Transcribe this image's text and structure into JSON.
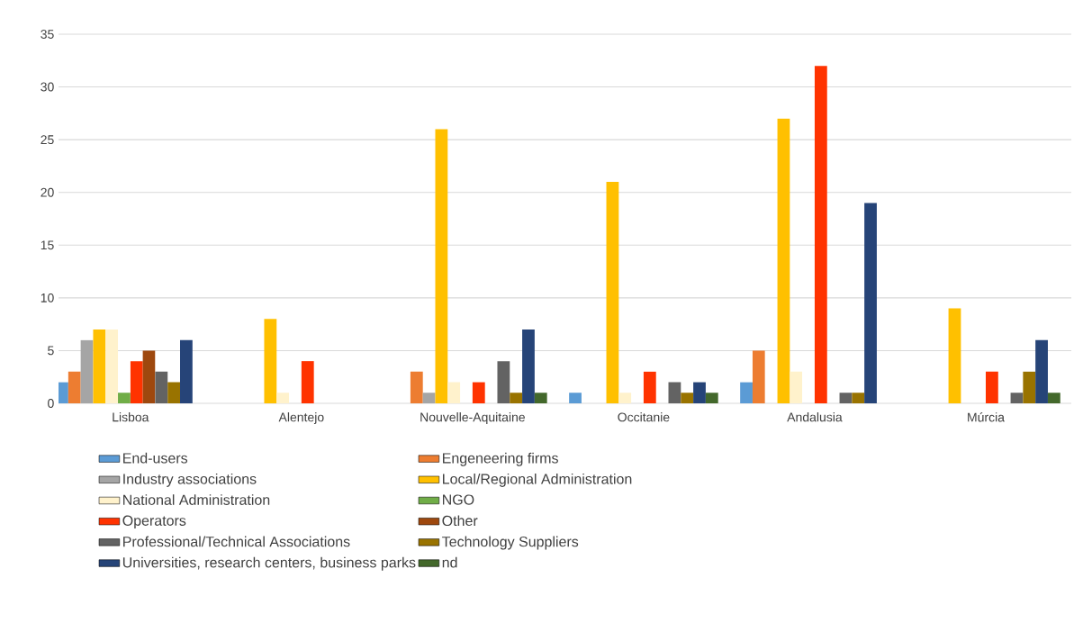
{
  "chart_data": {
    "type": "bar",
    "categories": [
      "Lisboa",
      "Alentejo",
      "Nouvelle-Aquitaine",
      "Occitanie",
      "Andalusia",
      "Múrcia"
    ],
    "series": [
      {
        "name": "End-users",
        "color": "#5b9bd5",
        "values": [
          2,
          null,
          null,
          1,
          2,
          null
        ]
      },
      {
        "name": "Engeneering firms",
        "color": "#ed7d31",
        "values": [
          3,
          null,
          3,
          null,
          5,
          null
        ]
      },
      {
        "name": "Industry associations",
        "color": "#a5a5a5",
        "values": [
          6,
          null,
          1,
          null,
          null,
          null
        ]
      },
      {
        "name": "Local/Regional Administration",
        "color": "#ffc000",
        "values": [
          7,
          8,
          26,
          21,
          27,
          9
        ]
      },
      {
        "name": "National Administration",
        "color": "#fff2cc",
        "values": [
          7,
          1,
          2,
          1,
          3,
          null
        ]
      },
      {
        "name": "NGO",
        "color": "#70ad47",
        "values": [
          1,
          null,
          null,
          null,
          null,
          null
        ]
      },
      {
        "name": "Operators",
        "color": "#ff3300",
        "values": [
          4,
          4,
          2,
          3,
          32,
          3
        ]
      },
      {
        "name": "Other",
        "color": "#9e480e",
        "values": [
          5,
          null,
          null,
          null,
          null,
          null
        ]
      },
      {
        "name": "Professional/Technical Associations",
        "color": "#636363",
        "values": [
          3,
          null,
          4,
          2,
          1,
          1
        ]
      },
      {
        "name": "Technology Suppliers",
        "color": "#997300",
        "values": [
          2,
          null,
          1,
          1,
          1,
          3
        ]
      },
      {
        "name": "Universities, research centers, business parks",
        "color": "#264478",
        "values": [
          6,
          null,
          7,
          2,
          19,
          6
        ]
      },
      {
        "name": "nd",
        "color": "#43682b",
        "values": [
          null,
          null,
          1,
          1,
          null,
          1
        ]
      }
    ],
    "ylim": [
      0,
      35
    ],
    "yticks": [
      0,
      5,
      10,
      15,
      20,
      25,
      30,
      35
    ],
    "grid": "y",
    "legend": "bottom"
  }
}
